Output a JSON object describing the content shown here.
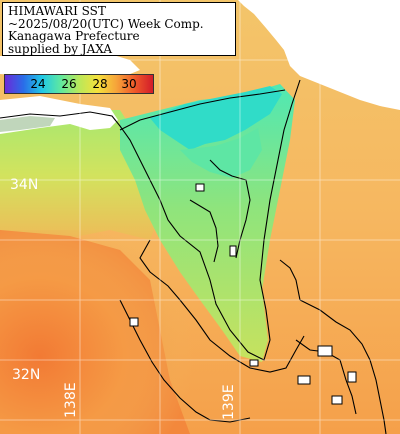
{
  "header": {
    "line1": "HIMAWARI SST",
    "line2": "~2025/08/20(UTC) Week Comp.",
    "line3": "Kanagawa Prefecture",
    "line4": "supplied by JAXA"
  },
  "colorbar": {
    "labels": [
      "24",
      "26",
      "28",
      "30"
    ],
    "colors": [
      "#6a2bd9",
      "#2a6de8",
      "#21c8e6",
      "#5ee8a0",
      "#b9e85a",
      "#f4e13c",
      "#f6a53a",
      "#ef5a2a",
      "#d21c2a"
    ]
  },
  "grid_labels": {
    "lat_34": "34N",
    "lat_32": "32N",
    "lon_138": "138E",
    "lon_139": "139E"
  },
  "palette": {
    "land": "#ffffff",
    "coast_line": "#000000",
    "grid_line": "#ffffff",
    "bay_cyan": "#2fe0c0",
    "bay_green": "#6ee88a",
    "shelf_green": "#a8e46a",
    "offshore_yellow": "#e8d85a",
    "warm_orange": "#f5a24a",
    "hot_orange": "#f08238"
  }
}
